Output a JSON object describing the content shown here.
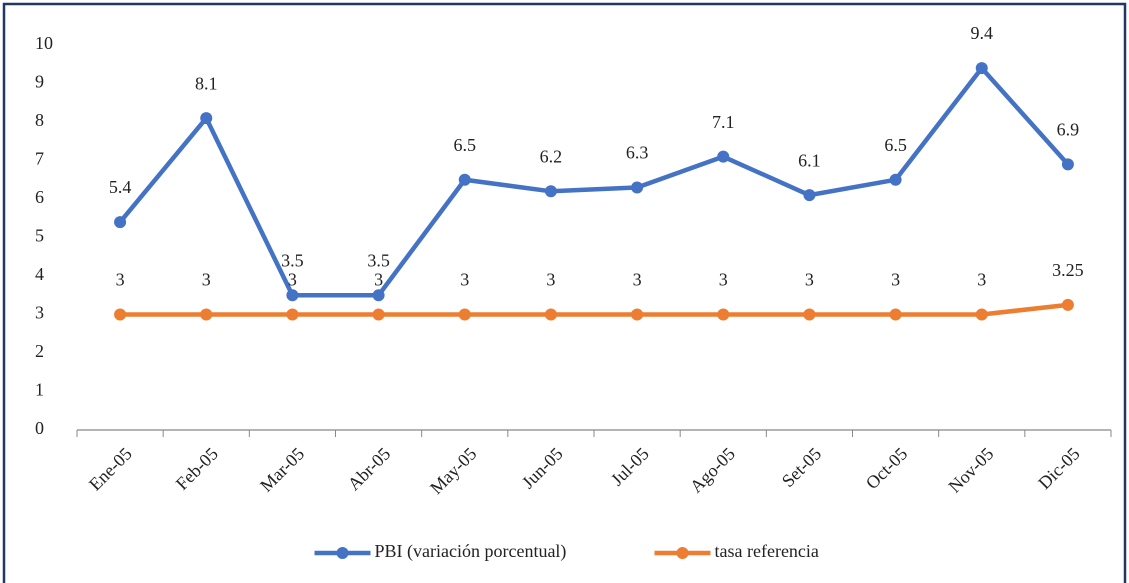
{
  "chart_data": {
    "type": "line",
    "categories": [
      "Ene-05",
      "Feb-05",
      "Mar-05",
      "Abr-05",
      "May-05",
      "Jun-05",
      "Jul-05",
      "Ago-05",
      "Set-05",
      "Oct-05",
      "Nov-05",
      "Dic-05"
    ],
    "series": [
      {
        "name": "PBI (variación porcentual)",
        "color": "#4472c4",
        "values": [
          5.4,
          8.1,
          3.5,
          3.5,
          6.5,
          6.2,
          6.3,
          7.1,
          6.1,
          6.5,
          9.4,
          6.9
        ]
      },
      {
        "name": "tasa referencia",
        "color": "#ed7d31",
        "values": [
          3,
          3,
          3,
          3,
          3,
          3,
          3,
          3,
          3,
          3,
          3,
          3.25
        ]
      }
    ],
    "ylim": [
      0,
      10
    ],
    "yticks": [
      0,
      1,
      2,
      3,
      4,
      5,
      6,
      7,
      8,
      9,
      10
    ],
    "grid": false,
    "legend": "bottom"
  }
}
